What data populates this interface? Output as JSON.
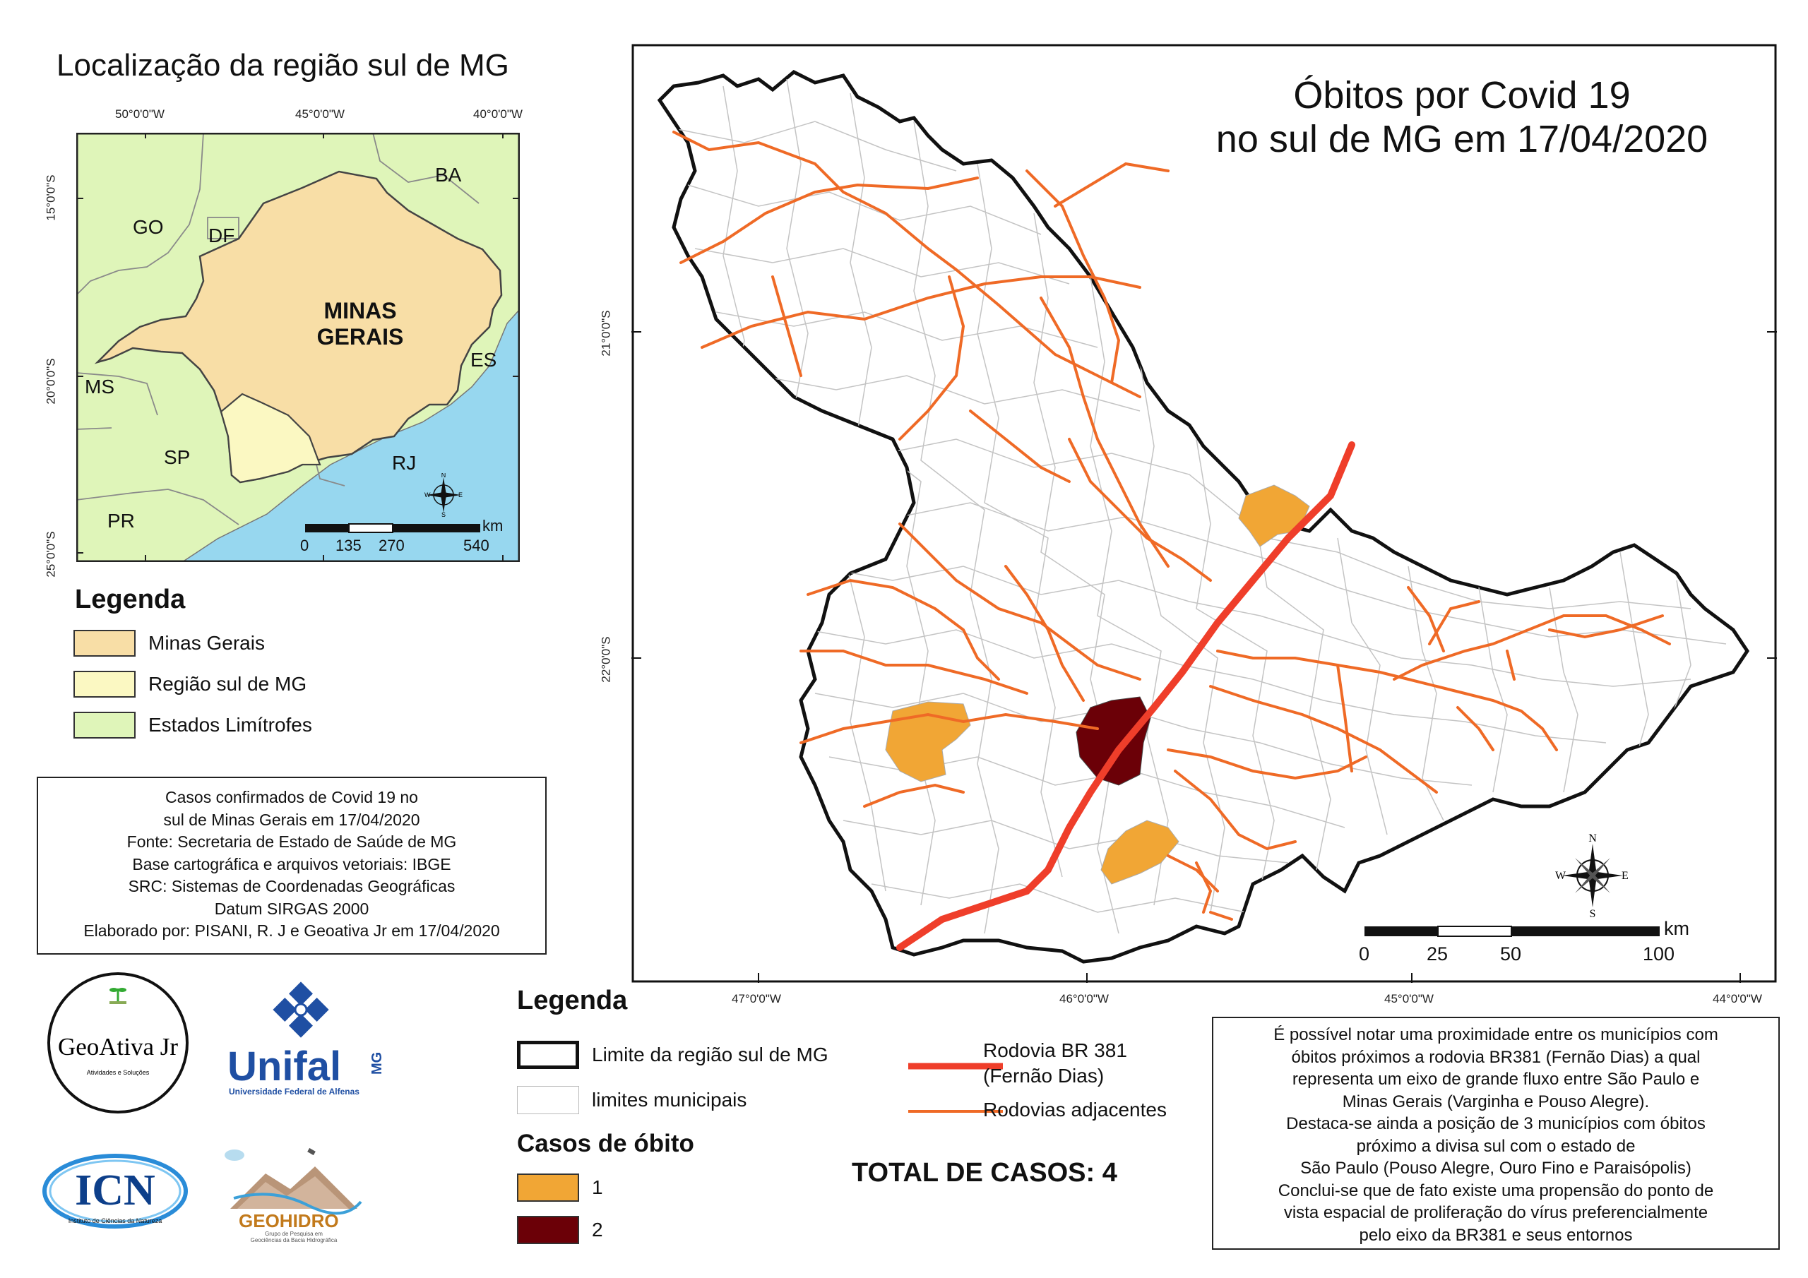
{
  "inset": {
    "title": "Localização da região sul de MG",
    "top_coords": [
      "50°0'0\"W",
      "45°0'0\"W",
      "40°0'0\"W"
    ],
    "left_coords": [
      "15°0'0\"S",
      "20°0'0\"S",
      "25°0'0\"S"
    ],
    "state_labels": {
      "ba": "BA",
      "go": "GO",
      "df": "DF",
      "es": "ES",
      "ms": "MS",
      "sp": "SP",
      "rj": "RJ",
      "pr": "PR",
      "mg_line1": "MINAS",
      "mg_line2": "GERAIS"
    },
    "scale": {
      "unit": "km",
      "ticks": [
        "0",
        "135",
        "270",
        "540"
      ]
    }
  },
  "inset_legend": {
    "title": "Legenda",
    "items": [
      {
        "label": "Minas Gerais",
        "color": "#f8dea6"
      },
      {
        "label": "Região sul de MG",
        "color": "#fbf8c2"
      },
      {
        "label": "Estados Limítrofes",
        "color": "#dff5b9"
      }
    ]
  },
  "info": {
    "lines": [
      "Casos confirmados de Covid 19 no",
      "sul de Minas Gerais em 17/04/2020",
      "Fonte: Secretaria de Estado de Saúde de MG",
      "Base cartográfica e arquivos vetoriais: IBGE",
      "SRC: Sistemas de Coordenadas Geográficas",
      "Datum SIRGAS 2000",
      "Elaborado por: PISANI, R. J e Geoativa Jr em 17/04/2020"
    ]
  },
  "logos": {
    "geoativa": {
      "name": "GeoAtiva Jr",
      "tagline": "Atividades e Soluções"
    },
    "unifal": {
      "name": "Unifal",
      "mg": "MG",
      "sub": "Universidade Federal de Alfenas"
    },
    "icn": {
      "name": "ICN",
      "sub": "Instituto de Ciências da Natureza"
    },
    "geohidro": {
      "name": "GEOHIDRO",
      "sub1": "Grupo de Pesquisa em",
      "sub2": "Geociências da Bacia Hidrográfica"
    }
  },
  "main_map": {
    "title_line1": "Óbitos por Covid 19",
    "title_line2": "no sul de MG em 17/04/2020",
    "bottom_coords": [
      "47°0'0\"W",
      "46°0'0\"W",
      "45°0'0\"W",
      "44°0'0\"W"
    ],
    "left_coords": [
      "21°0'0\"S",
      "22°0'0\"S"
    ],
    "scale": {
      "unit": "km",
      "ticks": [
        "0",
        "25",
        "50",
        "100"
      ]
    },
    "compass": {
      "n": "N",
      "s": "S",
      "e": "E",
      "w": "W"
    },
    "colors": {
      "region_border": "#000000",
      "municipal": "#bdbdbd",
      "br381": "#ef3e2a",
      "roads": "#ef6a26",
      "one_death": "#f1a635",
      "two_deaths": "#6b0007"
    }
  },
  "main_legend": {
    "title": "Legenda",
    "limit_label": "Limite da região sul de MG",
    "municipal_label": "limites municipais",
    "br381_line1": "Rodovia BR 381",
    "br381_line2": "(Fernão Dias)",
    "roads_label": "Rodovias adjacentes",
    "deaths_title": "Casos de óbito",
    "deaths": [
      {
        "label": "1",
        "color": "#f1a635"
      },
      {
        "label": "2",
        "color": "#6b0007"
      }
    ]
  },
  "total": "TOTAL DE CASOS: 4",
  "note": {
    "lines": [
      "É possível notar uma proximidade entre os municípios com",
      "óbitos próximos a rodovia BR381 (Fernão Dias) a qual",
      "representa um eixo de grande fluxo entre São Paulo e",
      "Minas Gerais (Varginha e Pouso Alegre).",
      "Destaca-se ainda a posição de 3 municípios com óbitos",
      "próximo a divisa sul com o estado de",
      "São Paulo (Pouso Alegre, Ouro Fino e Paraisópolis)",
      "Conclui-se que de fato existe uma propensão do ponto de",
      "vista espacial de proliferação do vírus preferencialmente",
      "pelo eixo da BR381 e seus entornos"
    ]
  }
}
